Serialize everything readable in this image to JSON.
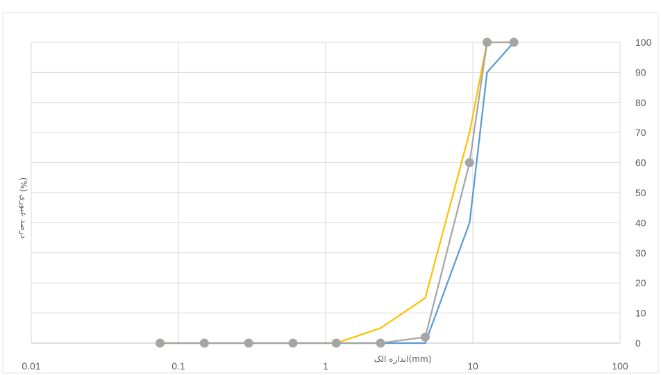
{
  "chart_data": {
    "type": "scatter",
    "title": "",
    "xlabel": "(mm)اندازه الک",
    "ylabel": "درصد عبوری (%)",
    "x_scale": "log",
    "xlim": [
      0.01,
      100
    ],
    "ylim": [
      0,
      100
    ],
    "x_ticks": [
      "0.01",
      "0.1",
      "1",
      "10",
      "100"
    ],
    "y_ticks": [
      "0",
      "10",
      "20",
      "30",
      "40",
      "50",
      "60",
      "70",
      "80",
      "90",
      "100"
    ],
    "grid": true,
    "legend": "none",
    "series": [
      {
        "color": "#5B9BD5",
        "marker": "none",
        "x": [
          0.075,
          0.15,
          0.3,
          0.6,
          1.18,
          2.36,
          4.75,
          9.5,
          12.5,
          19
        ],
        "y": [
          0,
          0,
          0,
          0,
          0,
          0,
          0,
          40,
          90,
          100
        ]
      },
      {
        "color": "#FFC000",
        "marker": "none",
        "x": [
          0.075,
          0.15,
          0.3,
          0.6,
          1.18,
          2.36,
          4.75,
          9.5,
          12.5,
          19
        ],
        "y": [
          0,
          0,
          0,
          0,
          0,
          5,
          15,
          70,
          100,
          100
        ]
      },
      {
        "color": "#A5A5A5",
        "marker": "circle",
        "x": [
          0.075,
          0.15,
          0.3,
          0.6,
          1.18,
          2.36,
          4.75,
          9.5,
          12.5,
          19
        ],
        "y": [
          0,
          0,
          0,
          0,
          0,
          0,
          2,
          60,
          100,
          100
        ]
      }
    ]
  }
}
